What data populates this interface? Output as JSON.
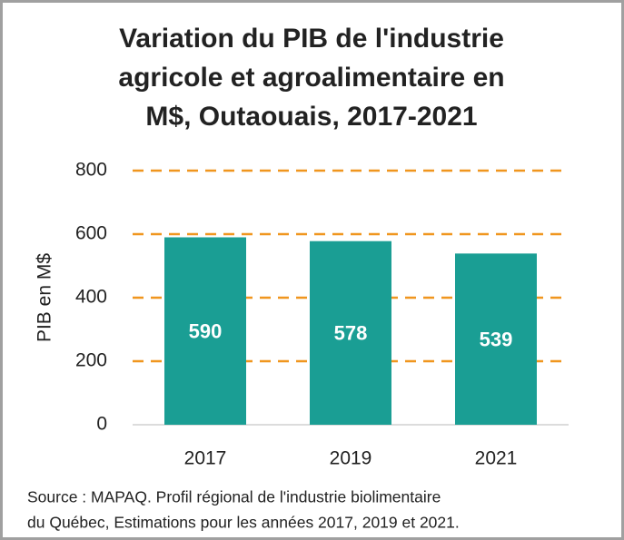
{
  "chart_data": {
    "type": "bar",
    "title": [
      "Variation du PIB de l'industrie",
      "agricole et agroalimentaire en",
      "M$, Outaouais, 2017-2021"
    ],
    "y_label": "PIB en M$",
    "categories": [
      "2017",
      "2019",
      "2021"
    ],
    "values": [
      590,
      578,
      539
    ],
    "color": "#1a9e94",
    "ylim": [
      0,
      800
    ],
    "yticks": [
      0,
      200,
      400,
      600,
      800
    ],
    "grid": true,
    "grid_color": "#f0961e",
    "note": [
      "Source : MAPAQ. Profil régional de l'industrie biolimentaire",
      "du Québec, Estimations pour les années 2017, 2019 et 2021."
    ]
  }
}
